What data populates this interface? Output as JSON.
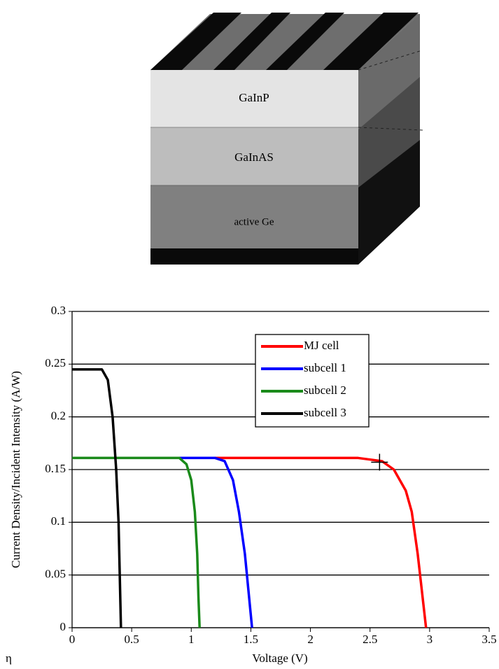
{
  "diagram": {
    "layers": [
      "GaInP",
      "GaInAS",
      "active Ge"
    ]
  },
  "chart_data": {
    "type": "line",
    "xlabel": "Voltage (V)",
    "ylabel": "Current Density/Incident Intensity (A/W)",
    "annotation": "η",
    "xlim": [
      0,
      3.5
    ],
    "xticks": [
      0,
      0.5,
      1,
      1.5,
      2,
      2.5,
      3,
      3.5
    ],
    "ylim": [
      0,
      0.3
    ],
    "yticks": [
      0,
      0.05,
      0.1,
      0.15,
      0.2,
      0.25,
      0.3
    ],
    "grid": true,
    "legend": "upper center",
    "marker": {
      "x": 2.58,
      "y": 0.157
    },
    "series": [
      {
        "name": "MJ cell",
        "color": "#ff0000",
        "x": [
          1.2,
          2.0,
          2.4,
          2.6,
          2.7,
          2.8,
          2.85,
          2.9,
          2.93,
          2.97
        ],
        "values": [
          0.161,
          0.161,
          0.161,
          0.158,
          0.15,
          0.13,
          0.11,
          0.07,
          0.04,
          0
        ]
      },
      {
        "name": "subcell 1",
        "color": "#0000ff",
        "x": [
          0.9,
          1.2,
          1.28,
          1.35,
          1.4,
          1.45,
          1.48,
          1.51
        ],
        "values": [
          0.161,
          0.161,
          0.158,
          0.14,
          0.11,
          0.07,
          0.035,
          0
        ]
      },
      {
        "name": "subcell 2",
        "color": "#1a8a1a",
        "x": [
          0,
          0.9,
          0.96,
          1.0,
          1.03,
          1.05,
          1.06,
          1.07
        ],
        "values": [
          0.161,
          0.161,
          0.155,
          0.14,
          0.11,
          0.07,
          0.03,
          0
        ]
      },
      {
        "name": "subcell 3",
        "color": "#000000",
        "x": [
          0,
          0.25,
          0.3,
          0.34,
          0.37,
          0.39,
          0.4,
          0.41
        ],
        "values": [
          0.245,
          0.245,
          0.235,
          0.2,
          0.15,
          0.1,
          0.05,
          0
        ]
      }
    ]
  }
}
